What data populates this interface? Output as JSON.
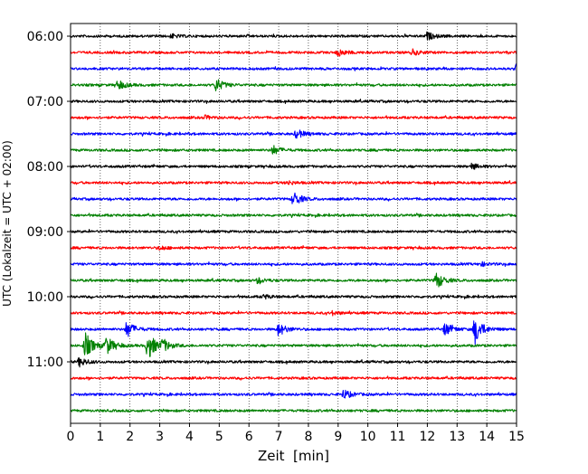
{
  "chart_data": {
    "type": "line",
    "chart_kind": "helicorder seismogram",
    "title": "",
    "xlabel": "Zeit  [min]",
    "ylabel": "UTC (Lokalzeit = UTC + 02:00)",
    "xlim": [
      0,
      15
    ],
    "x_ticks": [
      0,
      1,
      2,
      3,
      4,
      5,
      6,
      7,
      8,
      9,
      10,
      11,
      12,
      13,
      14,
      15
    ],
    "x_tick_labels": [
      "0",
      "1",
      "2",
      "3",
      "4",
      "5",
      "6",
      "7",
      "8",
      "9",
      "10",
      "11",
      "12",
      "13",
      "14",
      "15"
    ],
    "y_tick_labels": [
      "06:00",
      "07:00",
      "08:00",
      "09:00",
      "10:00",
      "11:00"
    ],
    "grid": "vertical dotted",
    "legend": "none",
    "colors": [
      "#000000",
      "#ff0000",
      "#0000ff",
      "#008000"
    ],
    "lines": [
      {
        "start": "06:00",
        "color": "#000000",
        "events": [
          {
            "t": 12.0,
            "amp": 4
          },
          {
            "t": 3.4,
            "amp": 2
          }
        ]
      },
      {
        "start": "06:15",
        "color": "#ff0000",
        "events": [
          {
            "t": 9.0,
            "amp": 4
          },
          {
            "t": 11.5,
            "amp": 3
          }
        ]
      },
      {
        "start": "06:30",
        "color": "#0000ff",
        "events": [
          {
            "t": 15.0,
            "amp": 5
          }
        ]
      },
      {
        "start": "06:45",
        "color": "#008000",
        "events": [
          {
            "t": 4.9,
            "amp": 7
          },
          {
            "t": 1.6,
            "amp": 5
          }
        ]
      },
      {
        "start": "07:00",
        "color": "#000000",
        "events": []
      },
      {
        "start": "07:15",
        "color": "#ff0000",
        "events": [
          {
            "t": 4.5,
            "amp": 2
          }
        ]
      },
      {
        "start": "07:30",
        "color": "#0000ff",
        "events": [
          {
            "t": 7.6,
            "amp": 5
          }
        ]
      },
      {
        "start": "07:45",
        "color": "#008000",
        "events": [
          {
            "t": 6.8,
            "amp": 5
          }
        ]
      },
      {
        "start": "08:00",
        "color": "#000000",
        "events": [
          {
            "t": 13.5,
            "amp": 3
          }
        ]
      },
      {
        "start": "08:15",
        "color": "#ff0000",
        "events": [
          {
            "t": 7.3,
            "amp": 2
          }
        ]
      },
      {
        "start": "08:30",
        "color": "#0000ff",
        "events": [
          {
            "t": 7.5,
            "amp": 8
          }
        ]
      },
      {
        "start": "08:45",
        "color": "#008000",
        "events": []
      },
      {
        "start": "09:00",
        "color": "#000000",
        "events": []
      },
      {
        "start": "09:15",
        "color": "#ff0000",
        "events": [
          {
            "t": 3.0,
            "amp": 2
          }
        ]
      },
      {
        "start": "09:30",
        "color": "#0000ff",
        "events": [
          {
            "t": 13.8,
            "amp": 2
          }
        ]
      },
      {
        "start": "09:45",
        "color": "#008000",
        "events": [
          {
            "t": 12.3,
            "amp": 9
          },
          {
            "t": 6.3,
            "amp": 3
          }
        ]
      },
      {
        "start": "10:00",
        "color": "#000000",
        "events": [
          {
            "t": 6.5,
            "amp": 2
          }
        ]
      },
      {
        "start": "10:15",
        "color": "#ff0000",
        "events": [
          {
            "t": 8.8,
            "amp": 2
          }
        ]
      },
      {
        "start": "10:30",
        "color": "#0000ff",
        "events": [
          {
            "t": 1.9,
            "amp": 9
          },
          {
            "t": 7.0,
            "amp": 7
          },
          {
            "t": 12.6,
            "amp": 7
          },
          {
            "t": 13.6,
            "amp": 16
          }
        ]
      },
      {
        "start": "10:45",
        "color": "#008000",
        "events": [
          {
            "t": 0.5,
            "amp": 14
          },
          {
            "t": 1.2,
            "amp": 10
          },
          {
            "t": 2.6,
            "amp": 16
          },
          {
            "t": 3.1,
            "amp": 6
          }
        ]
      },
      {
        "start": "11:00",
        "color": "#000000",
        "events": [
          {
            "t": 0.3,
            "amp": 5
          }
        ]
      },
      {
        "start": "11:15",
        "color": "#ff0000",
        "events": []
      },
      {
        "start": "11:30",
        "color": "#0000ff",
        "events": [
          {
            "t": 9.2,
            "amp": 5
          }
        ]
      },
      {
        "start": "11:45",
        "color": "#008000",
        "events": []
      }
    ]
  }
}
